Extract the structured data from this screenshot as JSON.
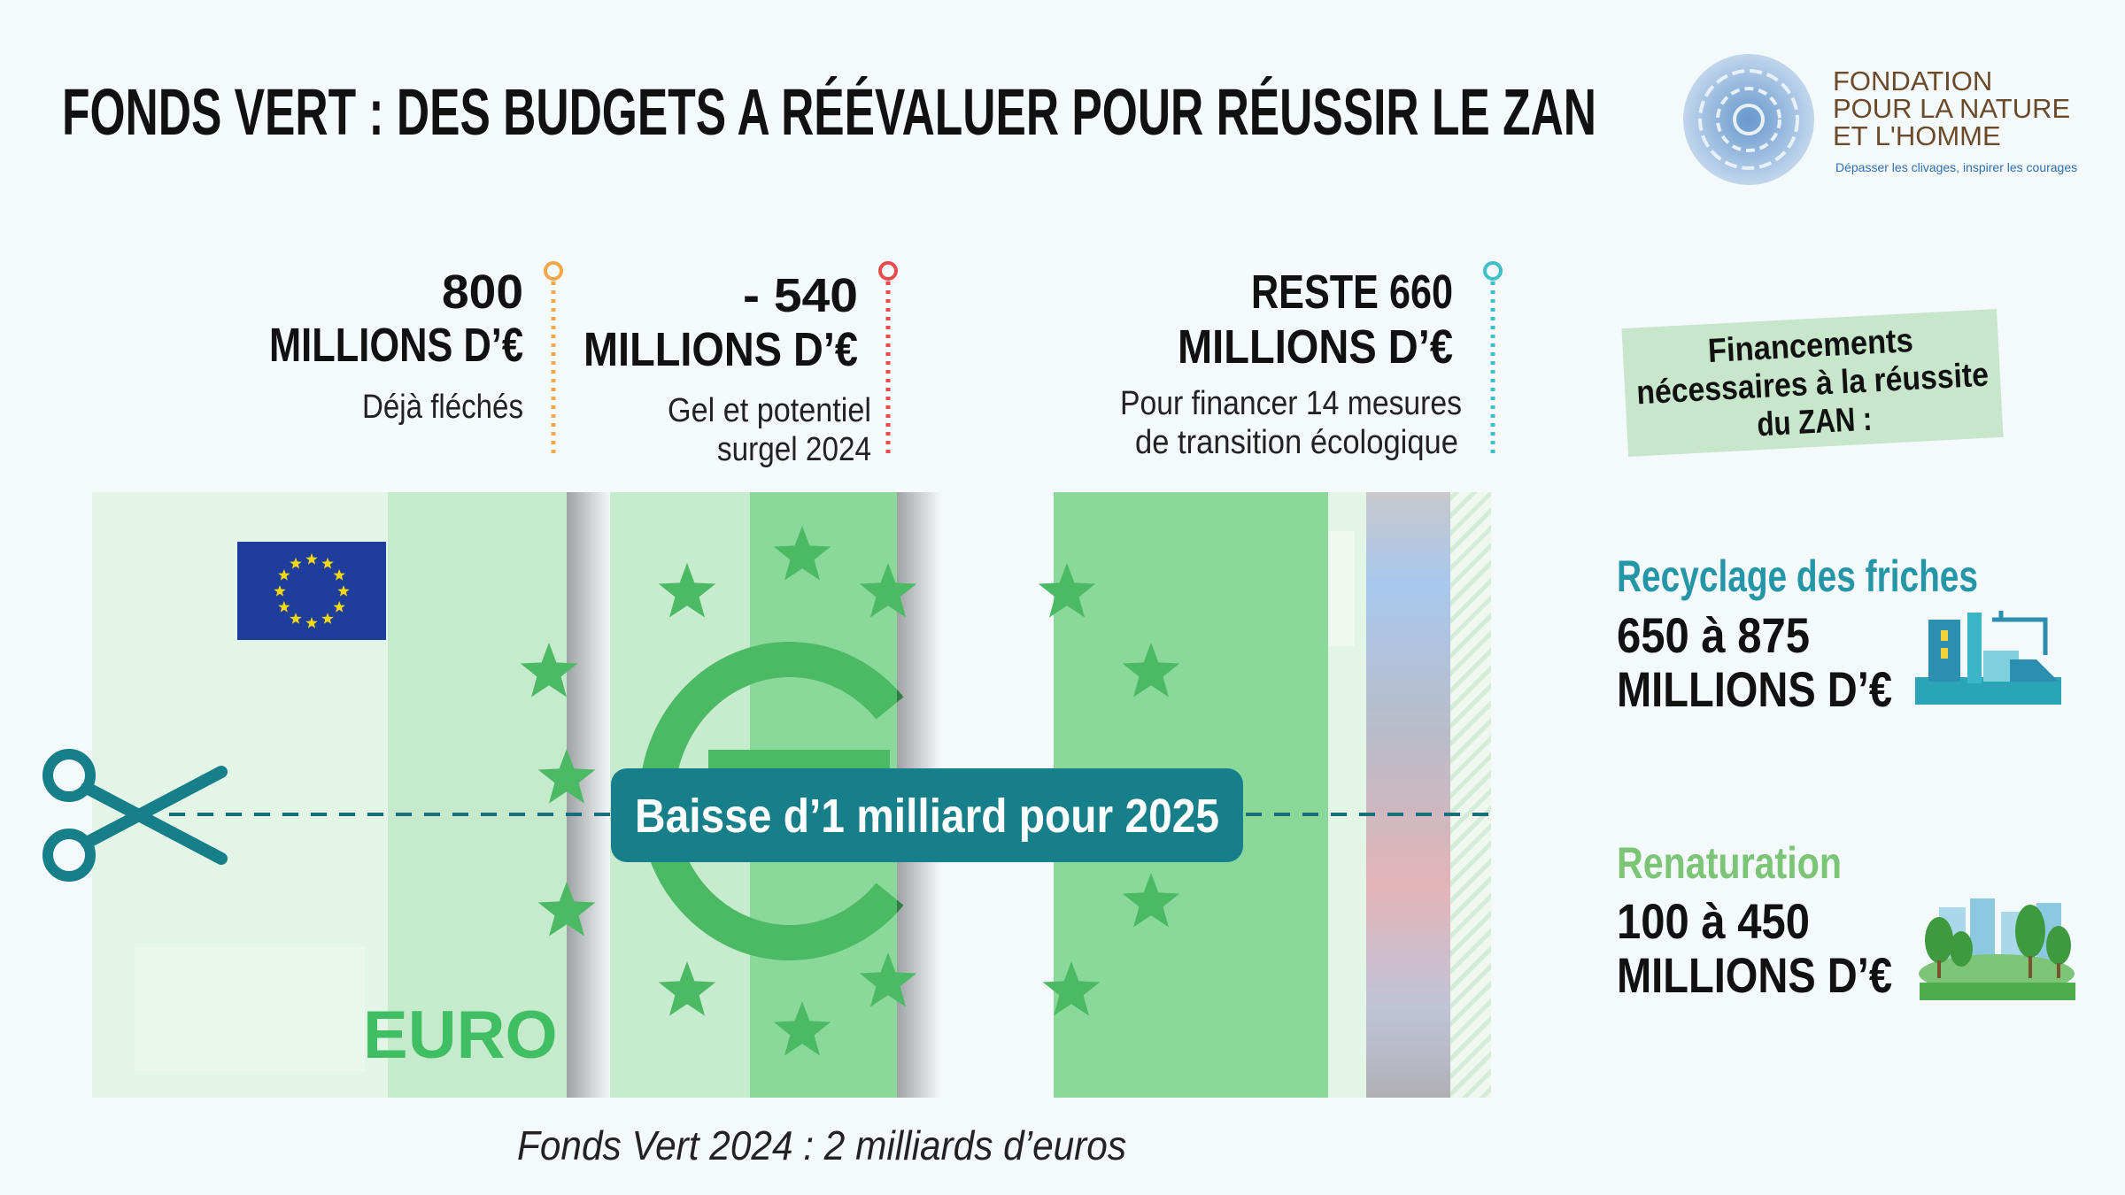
{
  "header": {
    "title": "FONDS VERT : DES BUDGETS A RÉÉVALUER POUR RÉUSSIR LE ZAN"
  },
  "logo": {
    "lines": [
      "FONDATION",
      "POUR LA NATURE",
      "ET L'HOMME"
    ],
    "tagline": "Dépasser les clivages, inspirer les courages"
  },
  "segments": [
    {
      "amount": "800",
      "unit": "MILLIONS D’€",
      "note": [
        "Déjà fléchés"
      ]
    },
    {
      "amount": "- 540",
      "unit": "MILLIONS D’€",
      "note": [
        "Gel et potentiel",
        "surgel 2024"
      ]
    },
    {
      "amount": "RESTE 660",
      "unit": "MILLIONS D’€",
      "note": [
        "Pour financer 14 mesures",
        "de transition écologique"
      ]
    }
  ],
  "bill": {
    "text": "EURO"
  },
  "cut_label": "Baisse d’1 milliard pour 2025",
  "caption": "Fonds Vert 2024 : 2 milliards d’euros",
  "sidebar": {
    "tag": [
      "Financements",
      "nécessaires à la réussite",
      "du ZAN :"
    ],
    "items": [
      {
        "name": "Recyclage des friches",
        "amount": "650 à 875",
        "unit": "MILLIONS D’€"
      },
      {
        "name": "Renaturation",
        "amount": "100 à 450",
        "unit": "MILLIONS D’€"
      }
    ]
  }
}
